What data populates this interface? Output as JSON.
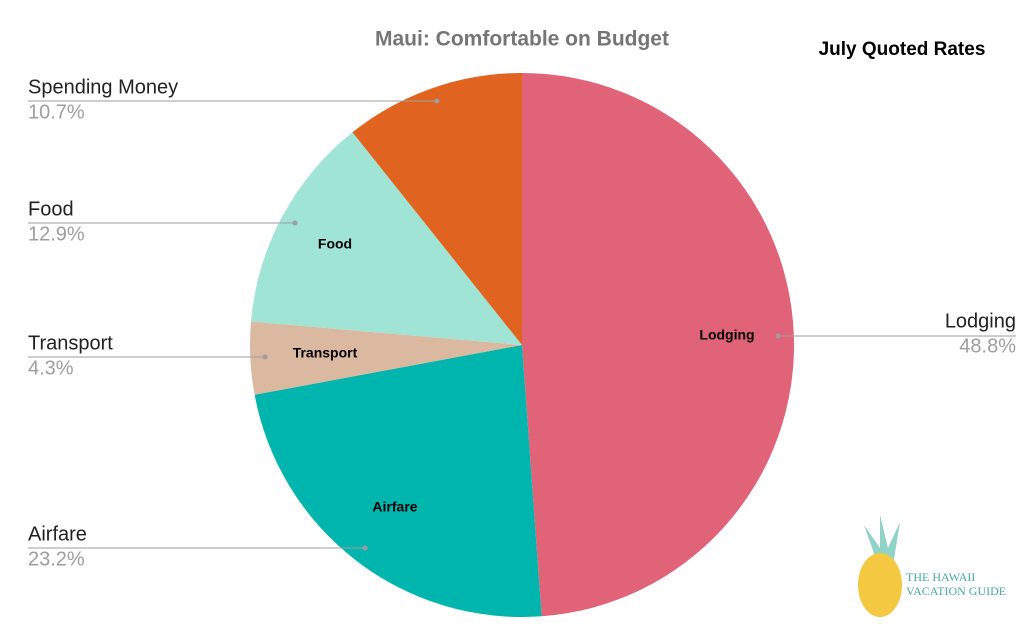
{
  "chart_data": {
    "type": "pie",
    "title": "Maui: Comfortable on Budget",
    "subtitle": "July Quoted Rates",
    "categories": [
      "Lodging",
      "Airfare",
      "Transport",
      "Food",
      "Spending Money"
    ],
    "values": [
      48.8,
      23.2,
      4.3,
      12.9,
      10.7
    ],
    "value_labels": [
      "48.8%",
      "23.2%",
      "4.3%",
      "12.9%",
      "10.7%"
    ],
    "colors": [
      "#e06377",
      "#00b5ad",
      "#dbb8a0",
      "#a0e4d6",
      "#e0641f"
    ]
  },
  "logo": {
    "line1": "THE HAWAII",
    "line2": "VACATION GUIDE"
  }
}
